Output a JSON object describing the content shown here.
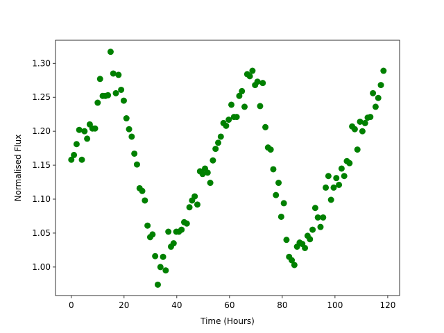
{
  "chart_data": {
    "type": "scatter",
    "xlabel": "Time (Hours)",
    "ylabel": "Normalised Flux",
    "color": "#008000",
    "grid": false,
    "xlim": [
      -6,
      124.5
    ],
    "ylim": [
      0.958,
      1.334
    ],
    "xticks": [
      0,
      20,
      40,
      60,
      80,
      100,
      120
    ],
    "yticks": [
      {
        "value": 1,
        "label": "1.00"
      },
      1.05,
      {
        "value": 1.1,
        "label": "1.10"
      },
      1.15,
      {
        "value": 1.2,
        "label": "1.20"
      },
      1.25,
      {
        "value": 1.3,
        "label": "1.30"
      }
    ],
    "x": [
      0,
      1,
      2,
      3,
      4,
      5,
      6,
      7,
      8,
      9,
      10,
      10.9,
      11.9,
      12.9,
      13.9,
      14.9,
      15.9,
      16.9,
      17.9,
      18.9,
      19.9,
      20.9,
      21.9,
      22.9,
      23.9,
      24.9,
      25.9,
      26.9,
      27.9,
      28.9,
      29.9,
      30.8,
      31.8,
      32.8,
      33.8,
      34.8,
      35.8,
      36.8,
      37.8,
      38.8,
      39.8,
      40.8,
      41.8,
      42.8,
      43.8,
      44.8,
      45.8,
      46.8,
      47.8,
      48.8,
      49.8,
      50.7,
      51.7,
      52.7,
      53.7,
      54.7,
      55.7,
      56.7,
      57.7,
      58.7,
      59.7,
      60.7,
      61.7,
      62.7,
      63.7,
      64.7,
      65.7,
      66.7,
      67.7,
      68.7,
      69.7,
      70.6,
      71.6,
      72.6,
      73.6,
      74.6,
      75.6,
      76.6,
      77.6,
      78.6,
      79.6,
      80.6,
      81.6,
      82.6,
      83.6,
      84.6,
      85.6,
      86.6,
      87.6,
      88.6,
      89.6,
      90.5,
      91.5,
      92.5,
      93.5,
      94.5,
      95.5,
      96.5,
      97.5,
      98.5,
      99.5,
      100.5,
      101.5,
      102.5,
      103.5,
      104.5,
      105.5,
      106.5,
      107.5,
      108.5,
      109.5,
      110.4,
      111.4,
      112.4,
      113.4,
      114.4,
      115.4,
      116.4,
      117.4,
      118.4
    ],
    "values": [
      1.158,
      1.165,
      1.181,
      1.202,
      1.158,
      1.2,
      1.189,
      1.21,
      1.204,
      1.204,
      1.242,
      1.277,
      1.252,
      1.252,
      1.253,
      1.317,
      1.285,
      1.256,
      1.283,
      1.261,
      1.245,
      1.219,
      1.203,
      1.192,
      1.167,
      1.151,
      1.116,
      1.112,
      1.098,
      1.061,
      1.044,
      1.048,
      1.016,
      0.974,
      1.0,
      1.015,
      0.995,
      1.052,
      1.03,
      1.035,
      1.052,
      1.052,
      1.055,
      1.066,
      1.064,
      1.088,
      1.098,
      1.104,
      1.092,
      1.141,
      1.137,
      1.145,
      1.139,
      1.124,
      1.157,
      1.174,
      1.183,
      1.192,
      1.212,
      1.208,
      1.217,
      1.239,
      1.221,
      1.221,
      1.252,
      1.259,
      1.236,
      1.284,
      1.281,
      1.289,
      1.268,
      1.273,
      1.237,
      1.271,
      1.206,
      1.176,
      1.173,
      1.144,
      1.106,
      1.124,
      1.074,
      1.094,
      1.04,
      1.015,
      1.01,
      1.003,
      1.03,
      1.036,
      1.034,
      1.028,
      1.046,
      1.041,
      1.055,
      1.087,
      1.073,
      1.059,
      1.073,
      1.117,
      1.134,
      1.099,
      1.117,
      1.131,
      1.121,
      1.145,
      1.134,
      1.156,
      1.153,
      1.207,
      1.203,
      1.173,
      1.214,
      1.2,
      1.212,
      1.22,
      1.221,
      1.256,
      1.236,
      1.249,
      1.268,
      1.289
    ]
  }
}
